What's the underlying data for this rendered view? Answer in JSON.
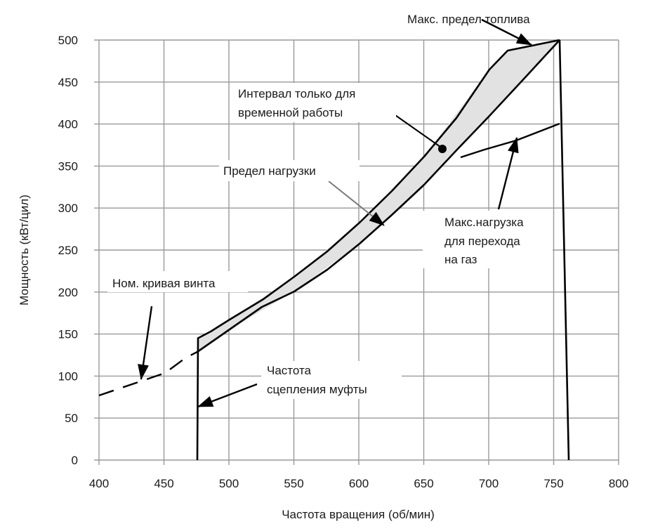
{
  "chart_data": {
    "type": "line",
    "title": "",
    "xlabel": "Частота вращения (об/мин)",
    "ylabel": "Мощность (кВт/цил)",
    "xlim": [
      400,
      800
    ],
    "ylim": [
      0,
      500
    ],
    "grid": true,
    "x_ticks": [
      "400",
      "450",
      "500",
      "550",
      "600",
      "650",
      "700",
      "750",
      "800"
    ],
    "y_ticks": [
      "0",
      "50",
      "100",
      "150",
      "200",
      "250",
      "300",
      "350",
      "400",
      "450",
      "500"
    ],
    "series": [
      {
        "name": "Ном. кривая винта",
        "style": "dashed",
        "x": [
          400,
          430,
          450,
          475
        ],
        "y": [
          77,
          92,
          103,
          128
        ]
      },
      {
        "name": "Предел нагрузки (нижняя граница)",
        "style": "solid",
        "x": [
          475,
          500,
          550,
          600,
          650,
          700,
          750
        ],
        "y": [
          128,
          152,
          200,
          258,
          330,
          410,
          500
        ]
      },
      {
        "name": "Макс. предел топлива (верхняя граница)",
        "style": "solid",
        "x": [
          475,
          500,
          550,
          600,
          650,
          700,
          712,
          750
        ],
        "y": [
          145,
          170,
          225,
          290,
          375,
          465,
          485,
          500
        ]
      },
      {
        "name": "Макс.нагрузка для перехода на газ",
        "style": "solid",
        "x": [
          675,
          700,
          725,
          750
        ],
        "y": [
          360,
          372,
          385,
          400
        ]
      },
      {
        "name": "Частота сцепления муфты",
        "style": "solid",
        "x": [
          475,
          475
        ],
        "y": [
          0,
          128
        ]
      },
      {
        "name": "Правая граница",
        "style": "solid",
        "x": [
          750,
          758
        ],
        "y": [
          500,
          0
        ]
      }
    ],
    "shaded_region": {
      "name": "Интервал только для временной работы",
      "color": "#e2e2e2"
    },
    "annotations": [
      {
        "text": "Макс. предел топлива",
        "x_label": 695,
        "y_label": 523
      },
      {
        "text": "Интервал только для временной работы",
        "x_label": 562,
        "y_label": 435
      },
      {
        "text": "Предел нагрузки",
        "x_label": 525,
        "y_label": 343
      },
      {
        "text": "Макс.нагрузка для перехода на газ",
        "x_label": 705,
        "y_label": 290
      },
      {
        "text": "Ном. кривая винта",
        "x_label": 458,
        "y_label": 210
      },
      {
        "text": "Частота сцепления муфты",
        "x_label": 525,
        "y_label": 100
      }
    ]
  },
  "labels": {
    "fuel_limit": "Макс. предел топлива",
    "temp_interval_1": "Интервал только для",
    "temp_interval_2": "временной работы",
    "load_limit": "Предел нагрузки",
    "gas_1": "Макс.нагрузка",
    "gas_2": "для перехода",
    "gas_3": "на газ",
    "propeller": "Ном. кривая винта",
    "clutch_1": "Частота",
    "clutch_2": "сцепления муфты"
  },
  "axes": {
    "xlabel": "Частота вращения (об/мин)",
    "ylabel": "Мощность (кВт/цил)",
    "x_ticks": [
      "400",
      "450",
      "500",
      "550",
      "600",
      "650",
      "700",
      "750",
      "800"
    ],
    "y_ticks": [
      "0",
      "50",
      "100",
      "150",
      "200",
      "250",
      "300",
      "350",
      "400",
      "450",
      "500"
    ]
  },
  "colors": {
    "grid": "#9a9a9a",
    "line": "#000000",
    "fill": "#e2e2e2",
    "text": "#1a1a1a"
  }
}
